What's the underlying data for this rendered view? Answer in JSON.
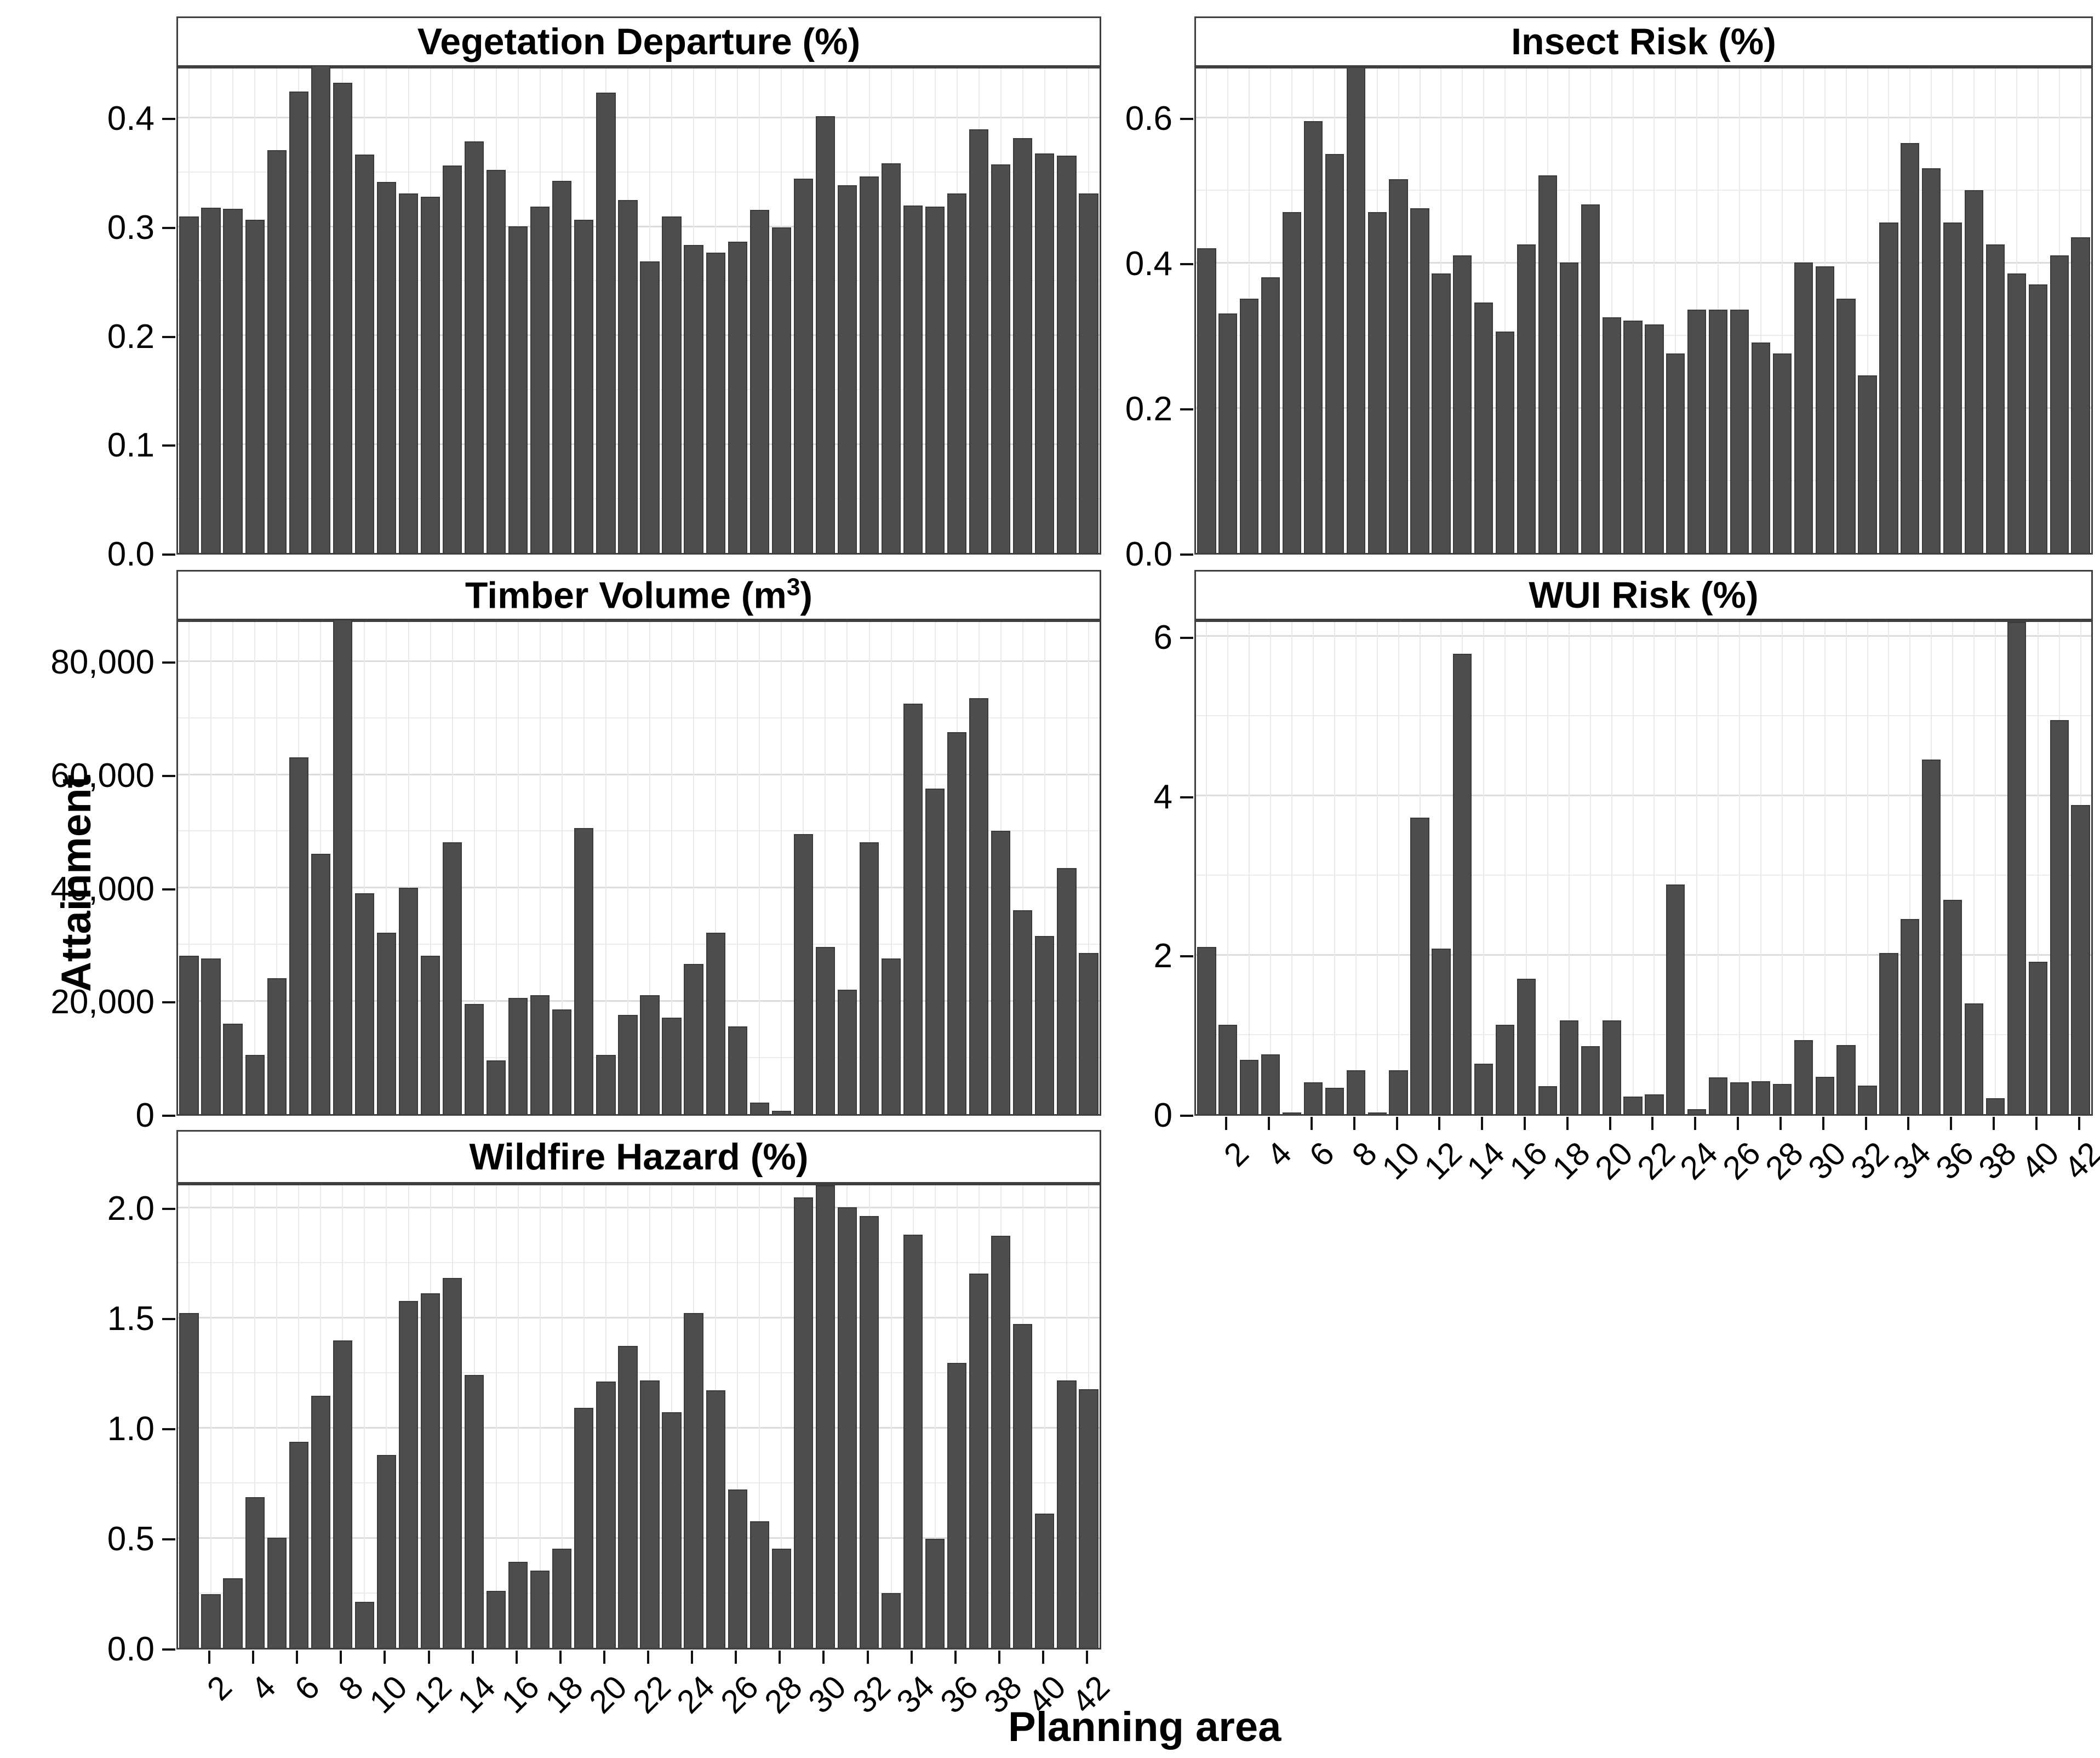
{
  "figure": {
    "ylabel": "Attainment",
    "xlabel": "Planning area",
    "background": "#ffffff",
    "bar_color": "#4d4d4d",
    "bar_edge_color": "#3a3a3a",
    "panel_border_color": "#3f3f3f",
    "grid_major_color": "#dcdcdc",
    "grid_minor_color": "#ededed",
    "grid_vertical_color": "#e9e9e9",
    "n_categories": 42,
    "x_tick_labels": [
      "2",
      "4",
      "6",
      "8",
      "10",
      "12",
      "14",
      "16",
      "18",
      "20",
      "22",
      "24",
      "26",
      "28",
      "30",
      "32",
      "34",
      "36",
      "38",
      "40",
      "42"
    ]
  },
  "chart_data": [
    {
      "type": "bar",
      "title": "Vegetation Departure (%)",
      "xlabel": "Planning area",
      "ylabel": "Attainment",
      "ylim": [
        0,
        0.448
      ],
      "minor_step": 0.05,
      "show_x_labels": false,
      "yticks": [
        {
          "v": 0.0,
          "label": "0.0"
        },
        {
          "v": 0.1,
          "label": "0.1"
        },
        {
          "v": 0.2,
          "label": "0.2"
        },
        {
          "v": 0.3,
          "label": "0.3"
        },
        {
          "v": 0.4,
          "label": "0.4"
        }
      ],
      "categories": [
        1,
        2,
        3,
        4,
        5,
        6,
        7,
        8,
        9,
        10,
        11,
        12,
        13,
        14,
        15,
        16,
        17,
        18,
        19,
        20,
        21,
        22,
        23,
        24,
        25,
        26,
        27,
        28,
        29,
        30,
        31,
        32,
        33,
        34,
        35,
        36,
        37,
        38,
        39,
        40,
        41,
        42
      ],
      "values": [
        0.309,
        0.317,
        0.316,
        0.306,
        0.37,
        0.424,
        0.448,
        0.432,
        0.366,
        0.341,
        0.33,
        0.327,
        0.356,
        0.378,
        0.352,
        0.3,
        0.318,
        0.342,
        0.306,
        0.423,
        0.324,
        0.268,
        0.309,
        0.283,
        0.276,
        0.286,
        0.315,
        0.299,
        0.344,
        0.401,
        0.338,
        0.346,
        0.358,
        0.319,
        0.318,
        0.33,
        0.389,
        0.357,
        0.381,
        0.367,
        0.365,
        0.33
      ]
    },
    {
      "type": "bar",
      "title": "Insect Risk (%)",
      "xlabel": "Planning area",
      "ylabel": "Attainment",
      "ylim": [
        0,
        0.672
      ],
      "minor_step": 0.1,
      "show_x_labels": false,
      "yticks": [
        {
          "v": 0.0,
          "label": "0.0"
        },
        {
          "v": 0.2,
          "label": "0.2"
        },
        {
          "v": 0.4,
          "label": "0.4"
        },
        {
          "v": 0.6,
          "label": "0.6"
        }
      ],
      "categories": [
        1,
        2,
        3,
        4,
        5,
        6,
        7,
        8,
        9,
        10,
        11,
        12,
        13,
        14,
        15,
        16,
        17,
        18,
        19,
        20,
        21,
        22,
        23,
        24,
        25,
        26,
        27,
        28,
        29,
        30,
        31,
        32,
        33,
        34,
        35,
        36,
        37,
        38,
        39,
        40,
        41,
        42
      ],
      "values": [
        0.42,
        0.33,
        0.35,
        0.38,
        0.47,
        0.595,
        0.55,
        0.67,
        0.47,
        0.515,
        0.475,
        0.385,
        0.41,
        0.345,
        0.305,
        0.425,
        0.52,
        0.4,
        0.48,
        0.325,
        0.32,
        0.315,
        0.275,
        0.335,
        0.335,
        0.335,
        0.29,
        0.275,
        0.4,
        0.395,
        0.35,
        0.245,
        0.455,
        0.565,
        0.53,
        0.455,
        0.5,
        0.425,
        0.385,
        0.37,
        0.41,
        0.435
      ]
    },
    {
      "type": "bar",
      "title": "Timber Volume (m³)",
      "xlabel": "Planning area",
      "ylabel": "Attainment",
      "ylim": [
        0,
        87500
      ],
      "minor_step": 10000,
      "show_x_labels": false,
      "yticks": [
        {
          "v": 0,
          "label": "0"
        },
        {
          "v": 20000,
          "label": "20,000"
        },
        {
          "v": 40000,
          "label": "40,000"
        },
        {
          "v": 60000,
          "label": "60,000"
        },
        {
          "v": 80000,
          "label": "80,000"
        }
      ],
      "categories": [
        1,
        2,
        3,
        4,
        5,
        6,
        7,
        8,
        9,
        10,
        11,
        12,
        13,
        14,
        15,
        16,
        17,
        18,
        19,
        20,
        21,
        22,
        23,
        24,
        25,
        26,
        27,
        28,
        29,
        30,
        31,
        32,
        33,
        34,
        35,
        36,
        37,
        38,
        39,
        40,
        41,
        42
      ],
      "values": [
        28000,
        27500,
        16000,
        10500,
        24000,
        63000,
        46000,
        87400,
        39000,
        32000,
        40000,
        28000,
        48000,
        19500,
        9500,
        20500,
        21000,
        18500,
        50500,
        10500,
        17500,
        21000,
        17000,
        26500,
        32000,
        15500,
        2000,
        600,
        49500,
        29500,
        22000,
        48000,
        27500,
        72500,
        57500,
        67500,
        73500,
        50000,
        36000,
        31500,
        43500,
        28500
      ]
    },
    {
      "type": "bar",
      "title": "WUI Risk (%)",
      "xlabel": "Planning area",
      "ylabel": "Attainment",
      "ylim": [
        0,
        6.22
      ],
      "minor_step": 1,
      "show_x_labels": true,
      "yticks": [
        {
          "v": 0,
          "label": "0"
        },
        {
          "v": 2,
          "label": "2"
        },
        {
          "v": 4,
          "label": "4"
        },
        {
          "v": 6,
          "label": "6"
        }
      ],
      "categories": [
        1,
        2,
        3,
        4,
        5,
        6,
        7,
        8,
        9,
        10,
        11,
        12,
        13,
        14,
        15,
        16,
        17,
        18,
        19,
        20,
        21,
        22,
        23,
        24,
        25,
        26,
        27,
        28,
        29,
        30,
        31,
        32,
        33,
        34,
        35,
        36,
        37,
        38,
        39,
        40,
        41,
        42
      ],
      "values": [
        2.1,
        1.12,
        0.68,
        0.75,
        0.02,
        0.4,
        0.33,
        0.55,
        0.02,
        0.55,
        3.72,
        2.08,
        5.78,
        0.63,
        1.12,
        1.7,
        0.35,
        1.18,
        0.85,
        1.18,
        0.22,
        0.25,
        2.88,
        0.06,
        0.46,
        0.4,
        0.41,
        0.38,
        0.93,
        0.47,
        0.87,
        0.36,
        2.02,
        2.45,
        4.45,
        2.69,
        1.39,
        0.2,
        6.18,
        1.91,
        4.95,
        3.88
      ]
    },
    {
      "type": "bar",
      "title": "Wildfire Hazard (%)",
      "xlabel": "Planning area",
      "ylabel": "Attainment",
      "ylim": [
        0,
        2.115
      ],
      "minor_step": 0.25,
      "show_x_labels": true,
      "yticks": [
        {
          "v": 0.0,
          "label": "0.0"
        },
        {
          "v": 0.5,
          "label": "0.5"
        },
        {
          "v": 1.0,
          "label": "1.0"
        },
        {
          "v": 1.5,
          "label": "1.5"
        },
        {
          "v": 2.0,
          "label": "2.0"
        }
      ],
      "categories": [
        1,
        2,
        3,
        4,
        5,
        6,
        7,
        8,
        9,
        10,
        11,
        12,
        13,
        14,
        15,
        16,
        17,
        18,
        19,
        20,
        21,
        22,
        23,
        24,
        25,
        26,
        27,
        28,
        29,
        30,
        31,
        32,
        33,
        34,
        35,
        36,
        37,
        38,
        39,
        40,
        41,
        42
      ],
      "values": [
        1.52,
        0.245,
        0.315,
        0.685,
        0.5,
        0.935,
        1.145,
        1.395,
        0.21,
        0.875,
        1.575,
        1.61,
        1.68,
        1.24,
        0.26,
        0.39,
        0.35,
        0.45,
        1.09,
        1.21,
        1.37,
        1.215,
        1.07,
        1.52,
        1.17,
        0.72,
        0.575,
        0.45,
        2.045,
        2.1,
        2.0,
        1.96,
        0.25,
        1.875,
        0.495,
        1.295,
        1.7,
        1.87,
        1.47,
        0.61,
        1.215,
        1.175
      ]
    }
  ]
}
